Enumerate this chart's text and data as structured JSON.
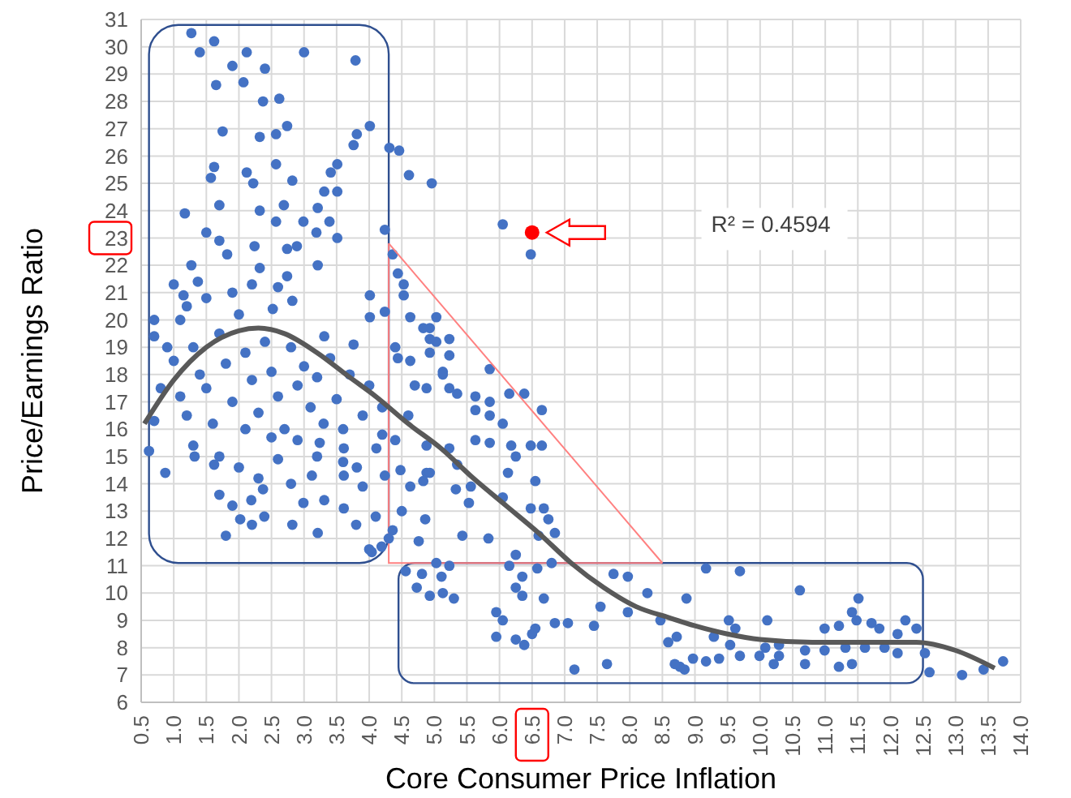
{
  "chart_data": {
    "type": "scatter",
    "xlabel": "Core Consumer Price Inflation",
    "ylabel": "Price/Earnings Ratio",
    "annotations": [
      "R² = 0.4594"
    ],
    "xlim": [
      0.5,
      14.0
    ],
    "ylim": [
      6,
      31
    ],
    "xticks": [
      {
        "value": 0.5,
        "label": "0.5"
      },
      {
        "value": 1,
        "label": "1.0"
      },
      {
        "value": 1.5,
        "label": "1.5"
      },
      {
        "value": 2,
        "label": "2.0"
      },
      {
        "value": 2.5,
        "label": "2.5"
      },
      {
        "value": 3,
        "label": "3.0"
      },
      {
        "value": 3.5,
        "label": "3.5"
      },
      {
        "value": 4,
        "label": "4.0"
      },
      {
        "value": 4.5,
        "label": "4.5"
      },
      {
        "value": 5,
        "label": "5.0"
      },
      {
        "value": 5.5,
        "label": "5.5"
      },
      {
        "value": 6,
        "label": "6.0"
      },
      {
        "value": 6.5,
        "label": "6.5"
      },
      {
        "value": 7,
        "label": "7.0"
      },
      {
        "value": 7.5,
        "label": "7.5"
      },
      {
        "value": 8,
        "label": "8.0"
      },
      {
        "value": 8.5,
        "label": "8.5"
      },
      {
        "value": 9,
        "label": "9.0"
      },
      {
        "value": 9.5,
        "label": "9.5"
      },
      {
        "value": 10,
        "label": "10.0"
      },
      {
        "value": 10.5,
        "label": "10.5"
      },
      {
        "value": 11,
        "label": "11.0"
      },
      {
        "value": 11.5,
        "label": "11.5"
      },
      {
        "value": 12,
        "label": "12.0"
      },
      {
        "value": 12.5,
        "label": "12.5"
      },
      {
        "value": 13,
        "label": "13.0"
      },
      {
        "value": 13.5,
        "label": "13.5"
      },
      {
        "value": 14,
        "label": "14.0"
      }
    ],
    "yticks": [
      6,
      7,
      8,
      9,
      10,
      11,
      12,
      13,
      14,
      15,
      16,
      17,
      18,
      19,
      20,
      21,
      22,
      23,
      24,
      25,
      26,
      27,
      28,
      29,
      30,
      31
    ],
    "grid": true,
    "marker": "circle",
    "series": [
      {
        "type": "scatter",
        "color": "#4472c4",
        "x": [
          1.27,
          1.62,
          1.4,
          2.12,
          3.0,
          3.79,
          1.9,
          2.4,
          1.65,
          2.07,
          2.37,
          2.62,
          1.75,
          2.32,
          2.57,
          2.74,
          3.81,
          4.01,
          3.76,
          4.31,
          4.46,
          4.61,
          4.96,
          1.62,
          1.57,
          2.12,
          2.22,
          2.57,
          2.82,
          3.41,
          3.51,
          3.31,
          3.51,
          1.7,
          1.17,
          2.32,
          2.69,
          3.21,
          2.99,
          3.39,
          2.57,
          1.5,
          1.7,
          3.19,
          3.51,
          4.24,
          2.24,
          2.74,
          1.82,
          2.89,
          2.32,
          3.21,
          1.27,
          4.36,
          4.44,
          4.53,
          1.0,
          1.37,
          1.15,
          4.01,
          0.7,
          0.7,
          4.63,
          4.93,
          4.24,
          4.01,
          5.03,
          3.76,
          3.31,
          2.82,
          2.52,
          2.74,
          5.13,
          4.93,
          4.44,
          0.62,
          0.87,
          1.32,
          1.8,
          2.02,
          2.39,
          2.82,
          2.99,
          3.31,
          3.21,
          3.61,
          4.04,
          4.19,
          2.19,
          1.7,
          1.62,
          2.37,
          3.12,
          3.61,
          3.81,
          4.24,
          3.61,
          3.24,
          4.11,
          4.48,
          4.63,
          4.86,
          4.76,
          4.56,
          4.73,
          5.11,
          5.13,
          4.93,
          4.36,
          4.88,
          6.05,
          6.48,
          4.53,
          5.03,
          4.83,
          4.93,
          5.23,
          5.23,
          4.63,
          5.85,
          5.13,
          4.88,
          5.23,
          5.35,
          5.63,
          5.85,
          6.15,
          6.38,
          6.65,
          5.63,
          5.85,
          6.05,
          5.63,
          5.85,
          6.18,
          6.48,
          6.65,
          6.25,
          6.13,
          4.88,
          5.23,
          5.35,
          4.93,
          4.83,
          5.33,
          5.56,
          6.55,
          6.05,
          5.53,
          6.48,
          6.68,
          6.75,
          5.43,
          5.83,
          6.6,
          6.85,
          6.25,
          6.8,
          6.15,
          6.58,
          5.03,
          5.23,
          4.81,
          6.35,
          7.75,
          7.97,
          6.25,
          6.35,
          6.68,
          5.3,
          8.27,
          8.87,
          7.55,
          7.97,
          5.95,
          6.05,
          5.95,
          6.55,
          6.85,
          7.05,
          7.45,
          6.25,
          6.38,
          6.5,
          7.15,
          7.65,
          8.59,
          8.72,
          8.77,
          8.97,
          9.17,
          9.69,
          10.61,
          11.51,
          11.41,
          11.48,
          8.47,
          9.52,
          10.11,
          9.62,
          10.99,
          11.21,
          11.71,
          12.23,
          12.4,
          11.83,
          12.11,
          9.29,
          9.54,
          10.08,
          10.29,
          10.69,
          10.99,
          11.31,
          11.61,
          11.91,
          12.11,
          12.53,
          9.37,
          9.69,
          9.99,
          10.29,
          8.69,
          8.84,
          9.17,
          10.21,
          10.69,
          11.21,
          11.41,
          12.6,
          13.1,
          13.43,
          13.73,
          1.0,
          1.1,
          1.2,
          1.3,
          1.4,
          1.5,
          1.6,
          1.7,
          1.8,
          1.9,
          2.0,
          2.1,
          2.2,
          2.3,
          2.4,
          2.5,
          2.6,
          2.7,
          2.8,
          2.9,
          3.0,
          3.1,
          3.2,
          3.3,
          3.4,
          3.5,
          3.6,
          3.7,
          3.9,
          4.0,
          4.2,
          1.2,
          1.5,
          1.9,
          2.2,
          2.6,
          1.3,
          1.7,
          2.0,
          2.3,
          2.6,
          2.9,
          3.2,
          3.6,
          3.9,
          4.1,
          4.3,
          4.2,
          4.4,
          4.5,
          0.8,
          0.7,
          0.9,
          1.1,
          2.1,
          2.5,
          2.8,
          1.9,
          2.2,
          3.8,
          4.0,
          4.6,
          4.7,
          4.4
        ],
        "values": [
          30.5,
          30.2,
          29.8,
          29.8,
          29.8,
          29.5,
          29.3,
          29.2,
          28.6,
          28.7,
          28.0,
          28.1,
          26.9,
          26.7,
          26.8,
          27.1,
          26.8,
          27.1,
          26.4,
          26.3,
          26.2,
          25.3,
          25.0,
          25.6,
          25.2,
          25.4,
          25.0,
          25.7,
          25.1,
          25.4,
          25.7,
          24.7,
          24.7,
          24.2,
          23.9,
          24.0,
          24.2,
          24.1,
          23.6,
          23.6,
          23.6,
          23.2,
          22.9,
          23.2,
          23.0,
          23.3,
          22.7,
          22.6,
          22.4,
          22.7,
          21.9,
          22.0,
          22.0,
          22.4,
          21.7,
          21.3,
          21.3,
          21.4,
          20.9,
          20.9,
          20.0,
          19.4,
          20.1,
          19.7,
          20.3,
          20.1,
          19.2,
          19.1,
          19.4,
          20.7,
          20.4,
          21.6,
          18.1,
          18.8,
          18.6,
          15.2,
          14.4,
          15.0,
          12.1,
          12.7,
          12.8,
          12.5,
          13.3,
          13.4,
          12.2,
          13.1,
          11.5,
          11.7,
          13.4,
          13.6,
          14.7,
          13.8,
          14.3,
          14.3,
          14.6,
          14.3,
          15.3,
          15.5,
          15.3,
          14.5,
          13.9,
          12.7,
          11.9,
          10.8,
          10.2,
          10.6,
          10.0,
          9.9,
          12.3,
          14.4,
          23.5,
          22.4,
          20.9,
          20.1,
          19.7,
          19.3,
          19.3,
          18.7,
          18.5,
          18.2,
          18.0,
          17.5,
          17.5,
          17.3,
          17.2,
          17.0,
          17.3,
          17.3,
          16.7,
          16.7,
          16.5,
          16.2,
          15.6,
          15.5,
          15.4,
          15.4,
          15.4,
          15.0,
          14.4,
          15.4,
          15.3,
          14.7,
          14.4,
          14.1,
          13.8,
          13.9,
          14.1,
          13.5,
          13.3,
          13.1,
          13.1,
          12.7,
          12.1,
          12.0,
          12.1,
          12.2,
          11.4,
          11.1,
          11.0,
          10.9,
          11.1,
          11.0,
          10.7,
          10.6,
          10.7,
          10.6,
          10.2,
          9.9,
          9.8,
          9.8,
          10.0,
          9.8,
          9.5,
          9.3,
          9.3,
          9.0,
          8.4,
          8.7,
          8.9,
          8.9,
          8.8,
          8.3,
          8.1,
          8.5,
          7.2,
          7.4,
          8.2,
          8.4,
          7.3,
          7.6,
          10.9,
          10.8,
          10.1,
          9.8,
          9.3,
          9.0,
          9.0,
          9.0,
          9.0,
          8.7,
          8.7,
          8.8,
          8.9,
          9.0,
          8.7,
          8.7,
          8.5,
          8.4,
          8.1,
          8.0,
          8.1,
          7.9,
          7.9,
          8.0,
          8.0,
          8.0,
          7.8,
          7.8,
          7.6,
          7.7,
          7.7,
          7.7,
          7.4,
          7.2,
          7.5,
          7.4,
          7.4,
          7.3,
          7.4,
          7.1,
          7.0,
          7.2,
          7.5,
          18.5,
          17.2,
          16.5,
          19.0,
          18.0,
          17.5,
          16.2,
          19.5,
          18.4,
          17.0,
          20.2,
          18.8,
          17.8,
          16.6,
          19.2,
          18.1,
          17.2,
          16.0,
          19.0,
          17.6,
          18.3,
          16.8,
          17.9,
          16.2,
          18.6,
          17.1,
          16.0,
          18.0,
          16.5,
          17.6,
          15.8,
          20.5,
          20.8,
          21.0,
          21.3,
          21.2,
          15.4,
          15.0,
          14.6,
          14.2,
          14.9,
          15.6,
          15.0,
          14.8,
          13.9,
          12.8,
          12.0,
          16.8,
          15.6,
          13.0,
          17.5,
          16.3,
          19.0,
          20.0,
          16.0,
          15.7,
          14.0,
          13.2,
          12.5,
          12.5,
          11.6,
          16.5,
          17.6,
          19.0
        ]
      },
      {
        "type": "scatter",
        "color": "#ff0000",
        "x": [
          6.5
        ],
        "values": [
          23.2
        ]
      },
      {
        "type": "line",
        "color": "#ff8080",
        "marker": "none",
        "x": [
          4.3,
          8.5
        ],
        "values": [
          22.8,
          11.1
        ]
      },
      {
        "type": "line",
        "color": "#595959",
        "marker": "none",
        "x": [
          0.55,
          1.0,
          1.5,
          2.0,
          2.3,
          2.7,
          3.2,
          3.7,
          4.1,
          4.6,
          5.1,
          5.6,
          6.1,
          6.6,
          7.1,
          7.6,
          8.1,
          8.6,
          9.0,
          9.5,
          10.0,
          10.8,
          11.5,
          12.4,
          13.0,
          13.6
        ],
        "values": [
          16.2,
          17.8,
          19.0,
          19.6,
          19.7,
          19.5,
          18.8,
          17.9,
          17.2,
          16.2,
          15.3,
          14.2,
          13.2,
          12.2,
          11.1,
          10.2,
          9.5,
          9.1,
          8.8,
          8.5,
          8.3,
          8.2,
          8.2,
          8.2,
          7.9,
          7.25
        ]
      }
    ]
  }
}
